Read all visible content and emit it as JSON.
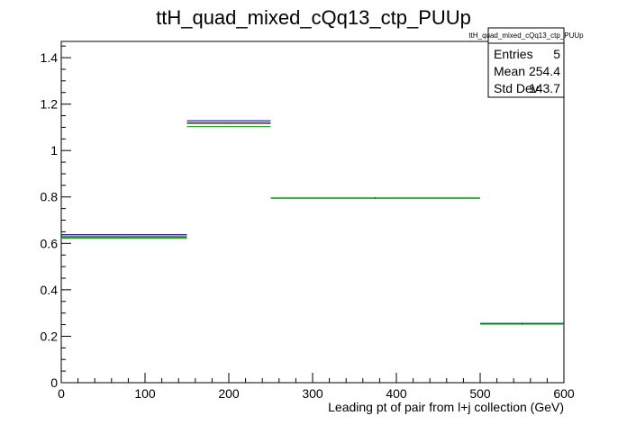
{
  "chart_data": {
    "type": "histogram",
    "title": "ttH_quad_mixed_cQq13_ctp_PUUp",
    "xlabel": "Leading pt of pair from l+j collection (GeV)",
    "ylabel": "",
    "xlim": [
      0,
      600
    ],
    "ylim": [
      0,
      1.47
    ],
    "x_ticks": [
      "0",
      "100",
      "200",
      "300",
      "400",
      "500",
      "600"
    ],
    "y_ticks": [
      "0",
      "0.2",
      "0.4",
      "0.6",
      "0.8",
      "1",
      "1.2",
      "1.4"
    ],
    "bin_edges": [
      0,
      150,
      250,
      500,
      600
    ],
    "series": [
      {
        "color": "#0000cc",
        "values": [
          0.637,
          1.128,
          0.795,
          0.255
        ]
      },
      {
        "color": "#000000",
        "values": [
          0.628,
          1.118,
          0.795,
          0.253
        ]
      },
      {
        "color": "#00cc00",
        "values": [
          0.622,
          1.103,
          0.795,
          0.252
        ]
      }
    ],
    "stats": {
      "name": "ttH_quad_mixed_cQq13_ctp_PUUp",
      "rows": [
        {
          "label": "Entries",
          "value": "5"
        },
        {
          "label": "Mean",
          "value": "254.4"
        },
        {
          "label": "Std Dev",
          "value": "143.7"
        }
      ]
    }
  }
}
